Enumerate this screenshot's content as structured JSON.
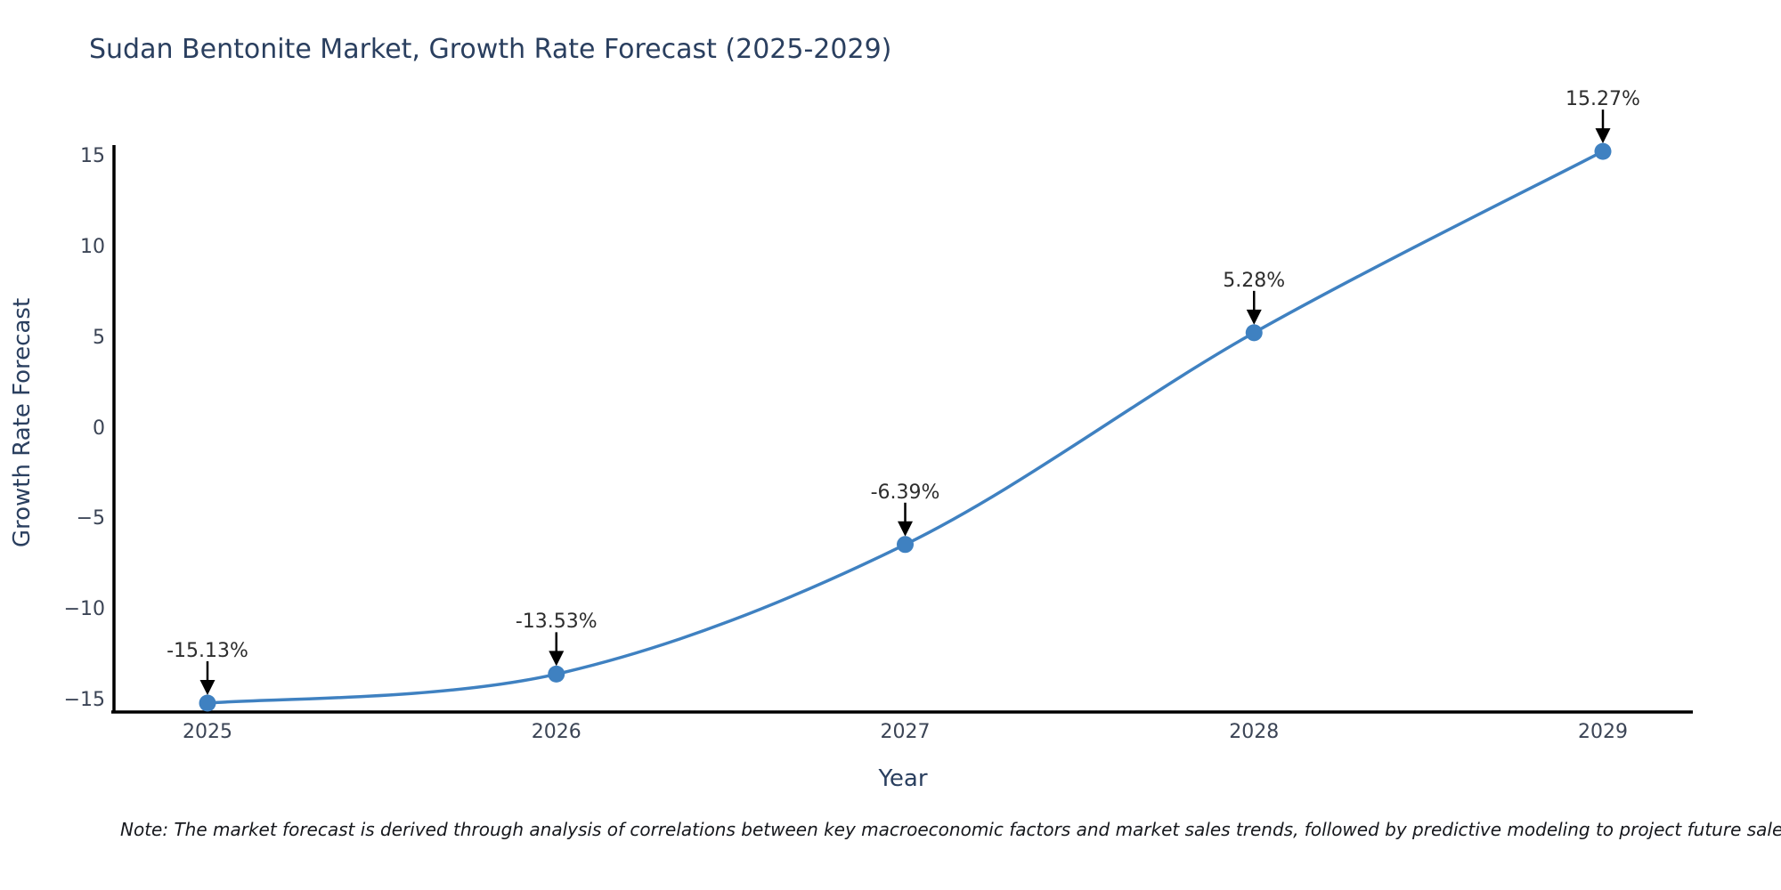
{
  "title": "Sudan Bentonite Market, Growth Rate Forecast (2025-2029)",
  "note": "Note: The market forecast is derived through analysis of correlations between key macroeconomic factors and market sales trends, followed by predictive modeling to project future sales",
  "colors": {
    "line": "#3f81c1",
    "marker": "#3f81c1",
    "axis": "#000000",
    "arrow": "#000000",
    "title_text": "#2a3f5f",
    "tick_text": "#3b4455",
    "annotation_text": "#2d2d2d",
    "background": "#ffffff"
  },
  "chart_data": {
    "type": "line",
    "title": "Sudan Bentonite Market, Growth Rate Forecast (2025-2029)",
    "xlabel": "Year",
    "ylabel": "Growth Rate Forecast",
    "x": [
      2025,
      2026,
      2027,
      2028,
      2029
    ],
    "values": [
      -15.13,
      -13.53,
      -6.39,
      5.28,
      15.27
    ],
    "point_labels": [
      "-15.13%",
      "-13.53%",
      "-6.39%",
      "5.28%",
      "15.27%"
    ],
    "x_tick_labels": [
      "2025",
      "2026",
      "2027",
      "2028",
      "2029"
    ],
    "y_ticks": [
      15,
      10,
      5,
      0,
      -5,
      -10,
      -15
    ],
    "y_tick_labels": [
      "15",
      "10",
      "5",
      "0",
      "−5",
      "−10",
      "−15"
    ],
    "ylim": [
      -15.7,
      15.8
    ],
    "grid": false,
    "legend": false,
    "line_shape": "spline",
    "markers": true,
    "annotations": "value labels with black down-arrows above each point"
  }
}
